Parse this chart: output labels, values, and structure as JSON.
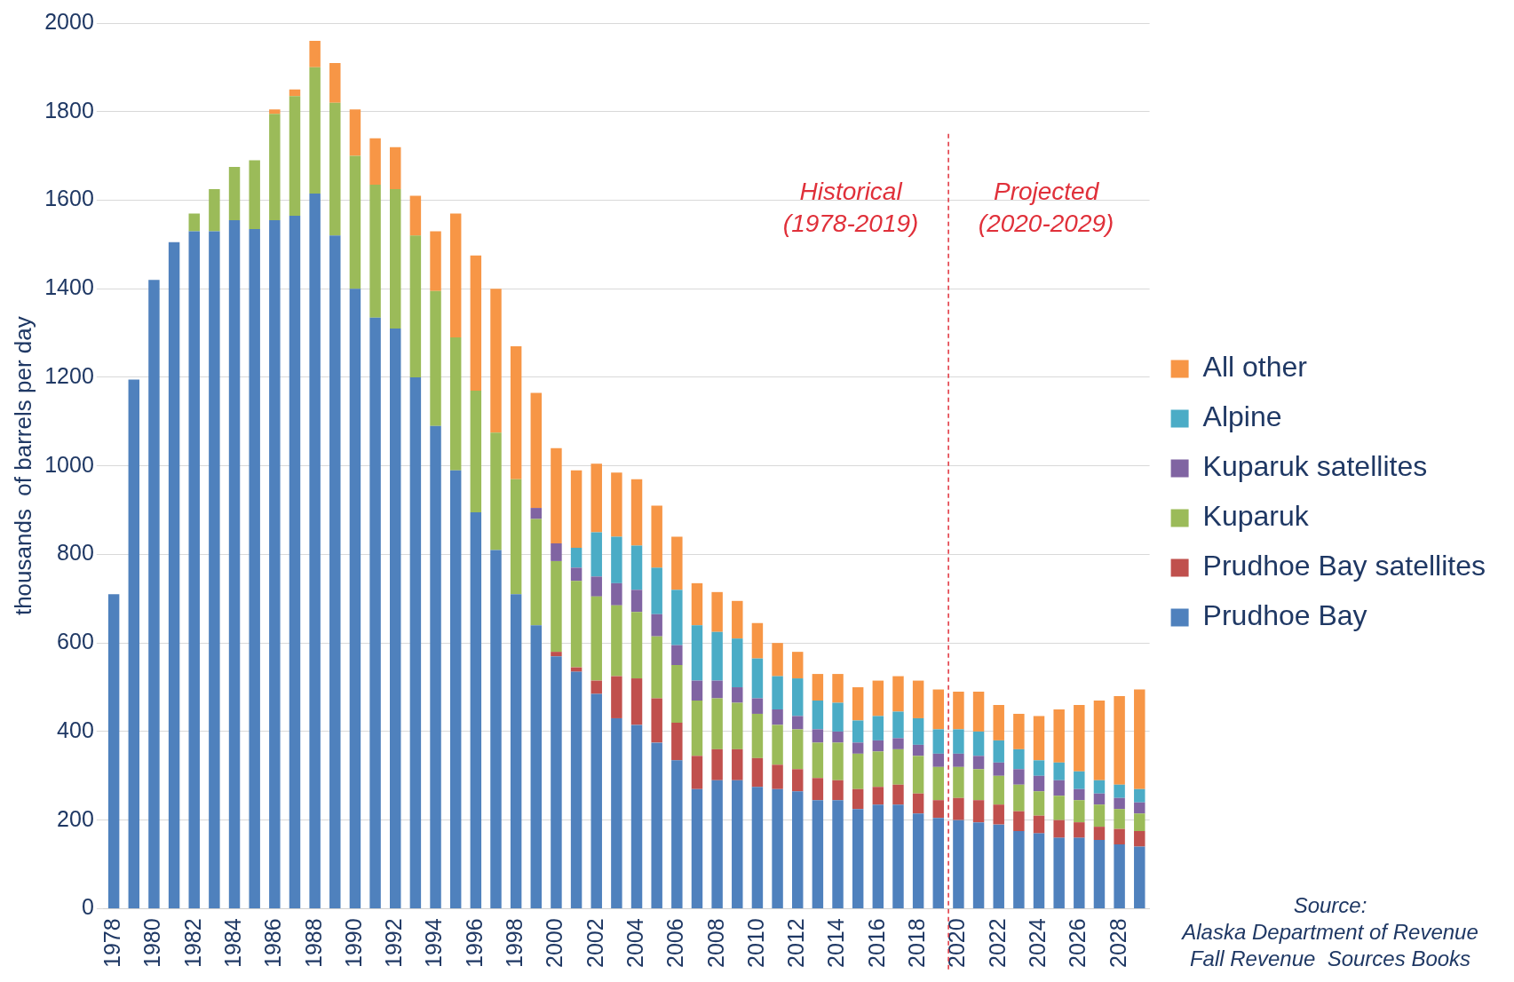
{
  "chart_data": {
    "type": "bar",
    "stacked": true,
    "ylabel": "thousands  of barrels per day",
    "categories": [
      "1978",
      null,
      "1980",
      null,
      "1982",
      null,
      "1984",
      null,
      "1986",
      null,
      "1988",
      null,
      "1990",
      null,
      "1992",
      null,
      "1994",
      null,
      "1996",
      null,
      "1998",
      null,
      "2000",
      null,
      "2002",
      null,
      "2004",
      null,
      "2006",
      null,
      "2008",
      null,
      "2010",
      null,
      "2012",
      null,
      "2014",
      null,
      "2016",
      null,
      "2018",
      null,
      "2020",
      null,
      "2022",
      null,
      "2024",
      null,
      "2026",
      null,
      "2028",
      null
    ],
    "series": [
      {
        "name": "Prudhoe Bay",
        "color": "#4f81bd",
        "values": [
          710,
          1195,
          1420,
          1505,
          1530,
          1530,
          1555,
          1535,
          1555,
          1565,
          1615,
          1520,
          1400,
          1335,
          1310,
          1200,
          1090,
          990,
          895,
          810,
          710,
          640,
          570,
          535,
          485,
          430,
          415,
          375,
          335,
          270,
          290,
          290,
          275,
          270,
          265,
          245,
          245,
          225,
          235,
          235,
          215,
          205,
          200,
          195,
          190,
          175,
          170,
          160,
          160,
          155,
          145,
          140
        ]
      },
      {
        "name": "Prudhoe Bay satellites",
        "color": "#c0504d",
        "values": [
          null,
          null,
          null,
          null,
          null,
          null,
          null,
          null,
          null,
          null,
          null,
          null,
          null,
          null,
          null,
          null,
          null,
          null,
          null,
          null,
          null,
          null,
          10,
          10,
          30,
          95,
          105,
          100,
          85,
          75,
          70,
          70,
          65,
          55,
          50,
          50,
          45,
          45,
          40,
          45,
          45,
          40,
          50,
          50,
          45,
          45,
          40,
          40,
          35,
          30,
          35,
          35
        ]
      },
      {
        "name": "Kuparuk",
        "color": "#9bbb59",
        "values": [
          null,
          null,
          null,
          null,
          40,
          95,
          120,
          155,
          240,
          270,
          285,
          300,
          300,
          300,
          315,
          320,
          305,
          300,
          275,
          265,
          260,
          240,
          205,
          195,
          190,
          160,
          150,
          140,
          130,
          125,
          115,
          105,
          100,
          90,
          90,
          80,
          85,
          80,
          80,
          80,
          85,
          75,
          70,
          70,
          65,
          60,
          55,
          55,
          50,
          50,
          45,
          40
        ]
      },
      {
        "name": "Kuparuk satellites",
        "color": "#8064a2",
        "values": [
          null,
          null,
          null,
          null,
          null,
          null,
          null,
          null,
          null,
          null,
          null,
          null,
          null,
          null,
          null,
          null,
          null,
          null,
          null,
          null,
          null,
          25,
          40,
          30,
          45,
          50,
          50,
          50,
          45,
          45,
          40,
          35,
          35,
          35,
          30,
          30,
          25,
          25,
          25,
          25,
          25,
          30,
          30,
          30,
          30,
          35,
          35,
          35,
          25,
          25,
          25,
          25
        ]
      },
      {
        "name": "Alpine",
        "color": "#4bacc6",
        "values": [
          null,
          null,
          null,
          null,
          null,
          null,
          null,
          null,
          null,
          null,
          null,
          null,
          null,
          null,
          null,
          null,
          null,
          null,
          null,
          null,
          null,
          null,
          null,
          45,
          100,
          105,
          100,
          105,
          125,
          125,
          110,
          110,
          90,
          75,
          85,
          65,
          65,
          50,
          55,
          60,
          60,
          55,
          55,
          55,
          50,
          45,
          35,
          40,
          40,
          30,
          30,
          30
        ]
      },
      {
        "name": "All other",
        "color": "#f79646",
        "values": [
          null,
          null,
          null,
          null,
          null,
          null,
          null,
          null,
          10,
          15,
          60,
          90,
          105,
          105,
          95,
          90,
          135,
          280,
          305,
          325,
          300,
          260,
          215,
          175,
          155,
          145,
          150,
          140,
          120,
          95,
          90,
          85,
          80,
          75,
          60,
          60,
          65,
          75,
          80,
          80,
          85,
          90,
          85,
          90,
          80,
          80,
          100,
          120,
          150,
          180,
          200,
          225
        ]
      }
    ],
    "ylim": [
      0,
      2000
    ],
    "yticks": [
      0,
      200,
      400,
      600,
      800,
      1000,
      1200,
      1400,
      1600,
      1800,
      2000
    ],
    "grid": "y",
    "legend": "right",
    "ref_lines": [
      {
        "axis": "x",
        "value": "2020",
        "color": "#e0303a",
        "line_style": "dashed"
      }
    ],
    "annotations": [
      "Historical\n(1978-2019)",
      "Projected\n(2020-2029)",
      "Source:\nAlaska Department of Revenue\nFall Revenue  Sources Books"
    ]
  }
}
